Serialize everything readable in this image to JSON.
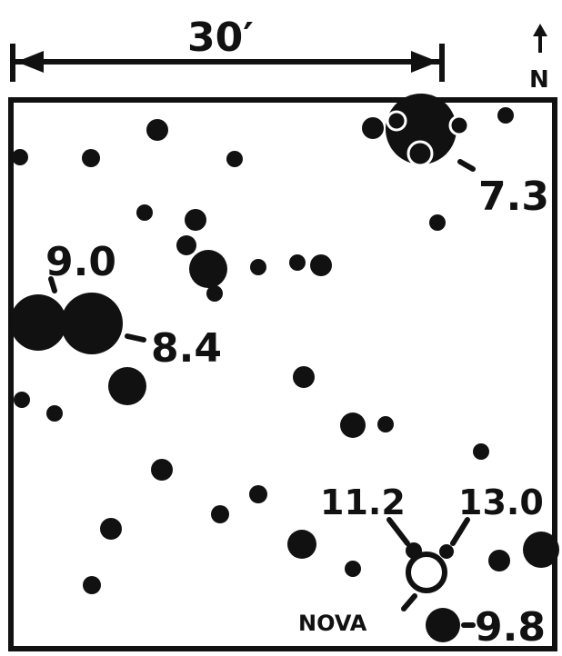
{
  "scale": {
    "label": "30′"
  },
  "north": {
    "label": "N"
  },
  "labels": {
    "mag_7_3": "7.3",
    "mag_9_0": "9.0",
    "mag_8_4": "8.4",
    "mag_11_2": "11.2",
    "mag_13_0": "13.0",
    "nova": "NOVA",
    "mag_9_8": "9.8"
  },
  "colors": {
    "ink": "#111111",
    "paper": "#ffffff"
  }
}
